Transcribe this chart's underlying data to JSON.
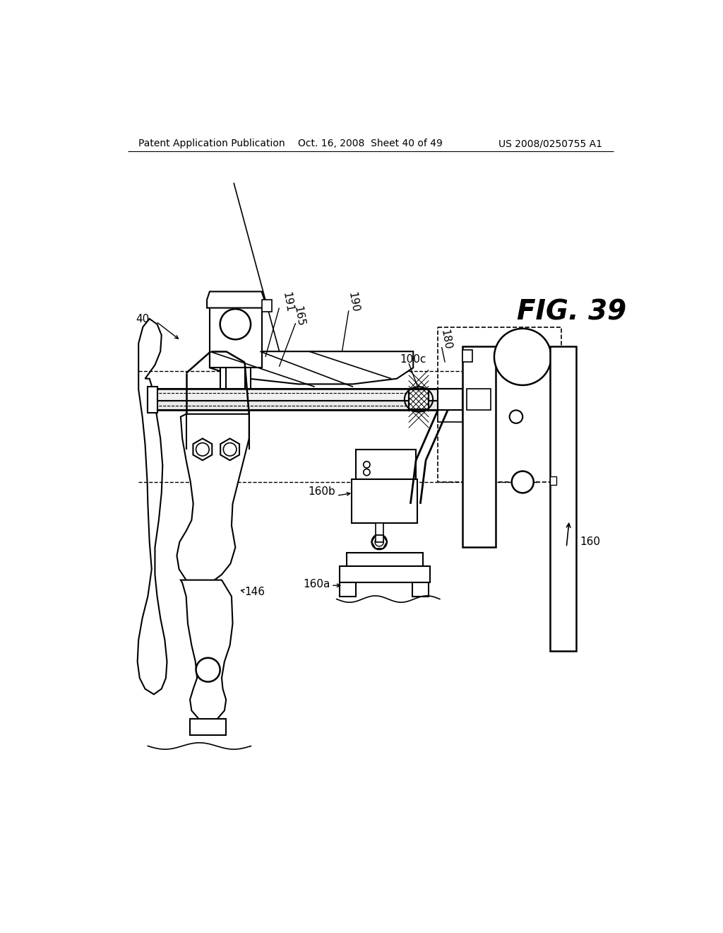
{
  "bg_color": "#ffffff",
  "header_left": "Patent Application Publication",
  "header_mid": "Oct. 16, 2008  Sheet 40 of 49",
  "header_right": "US 2008/0250755 A1",
  "fig_label": "FIG. 39",
  "line_color": "#000000",
  "lw_main": 1.8,
  "lw_thin": 1.0,
  "lw_thick": 2.2
}
